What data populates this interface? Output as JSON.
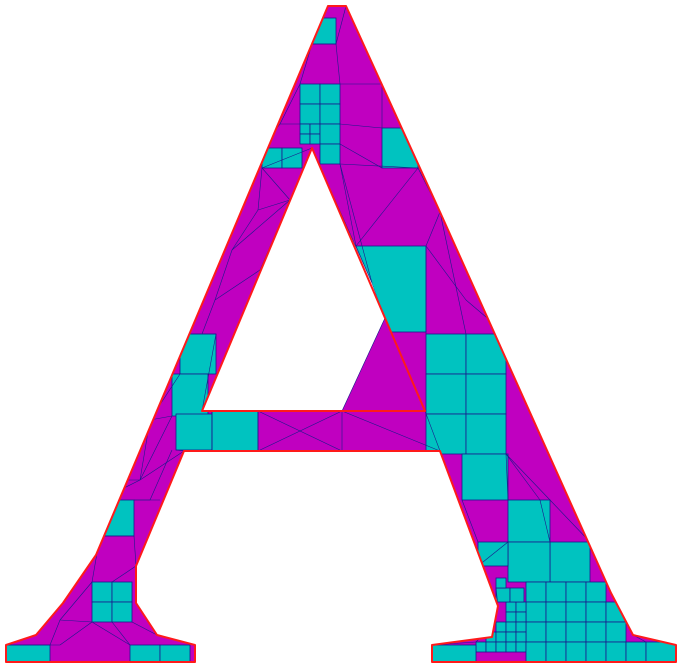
{
  "figure": {
    "description_visible_text": "",
    "colors": {
      "background": "#ffffff",
      "triangle_fill": "#c000c0",
      "quad_fill": "#00c3c0",
      "mesh_edge": "#1a1a8c",
      "boundary": "#ff1a1a"
    },
    "icons": []
  }
}
